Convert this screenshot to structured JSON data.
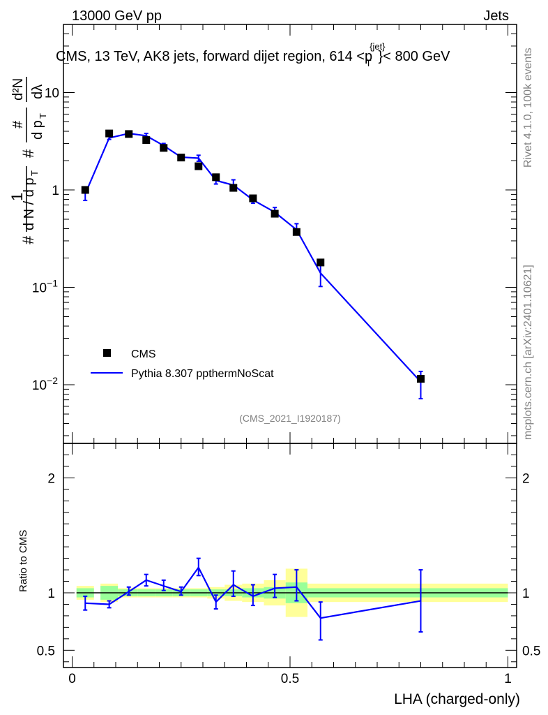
{
  "header": {
    "left": "13000 GeV pp",
    "right": "Jets"
  },
  "side": {
    "version": "Rivet 4.1.0,  100k events",
    "source": "mcplots.cern.ch [arXiv:2401.10621]"
  },
  "main_plot": {
    "title_prefix": "CMS, 13 TeV, AK8 jets, forward dijet region, 614 <",
    "title_p": "p",
    "title_sup": "{jet}",
    "title_sub": "T",
    "title_suffix": "}< 800 GeV",
    "ylabel": "1/N dN/dp_T dλ (normalized)",
    "analysis_id": "(CMS_2021_I1920187)"
  },
  "ratio_plot": {
    "ylabel": "Ratio to CMS"
  },
  "x_axis": {
    "label": "LHA (charged-only)",
    "ticks": [
      "0",
      "0.5",
      "1"
    ]
  },
  "legend": {
    "data": "CMS",
    "mc": "Pythia 8.307 ppthermNoScat"
  },
  "colors": {
    "mc": "#0000ff",
    "band_inner": "#99ff99",
    "band_outer": "#ffff99"
  },
  "chart_data": [
    {
      "type": "scatter",
      "title": "CMS, 13 TeV, AK8 jets, forward dijet region, 614 < p_T^{jet} < 800 GeV",
      "xlabel": "LHA (charged-only)",
      "ylabel": "(1/N) dN/dλ",
      "yscale": "log",
      "xlim": [
        -0.02,
        1.02
      ],
      "ylim": [
        0.0025,
        50
      ],
      "ytick_labels": [
        "10^-2",
        "10^-1",
        "1",
        "10"
      ],
      "series": [
        {
          "name": "CMS",
          "x": [
            0.03,
            0.085,
            0.13,
            0.17,
            0.21,
            0.25,
            0.29,
            0.33,
            0.37,
            0.415,
            0.465,
            0.515,
            0.57,
            0.8
          ],
          "y": [
            1.0,
            3.8,
            3.75,
            3.25,
            2.7,
            2.15,
            1.75,
            1.35,
            1.05,
            0.82,
            0.57,
            0.37,
            0.18,
            0.0115
          ],
          "xlow": [
            0.01,
            0.065,
            0.105,
            0.15,
            0.19,
            0.23,
            0.27,
            0.31,
            0.35,
            0.39,
            0.44,
            0.49,
            0.54,
            0.6
          ],
          "xhigh": [
            0.05,
            0.105,
            0.15,
            0.19,
            0.23,
            0.27,
            0.31,
            0.35,
            0.39,
            0.44,
            0.49,
            0.54,
            0.6,
            1.0
          ],
          "rel_err_inner": [
            0.04,
            0.06,
            0.03,
            0.03,
            0.03,
            0.03,
            0.03,
            0.03,
            0.03,
            0.04,
            0.05,
            0.09,
            0.04,
            0.04
          ],
          "rel_err_outer": [
            0.06,
            0.08,
            0.04,
            0.04,
            0.04,
            0.04,
            0.04,
            0.05,
            0.07,
            0.08,
            0.11,
            0.21,
            0.08,
            0.08
          ]
        },
        {
          "name": "Pythia 8.307 ppthermNoScat",
          "x": [
            0.03,
            0.085,
            0.13,
            0.17,
            0.21,
            0.25,
            0.29,
            0.33,
            0.37,
            0.415,
            0.465,
            0.515,
            0.57,
            0.8
          ],
          "y": [
            0.91,
            3.42,
            3.8,
            3.6,
            2.85,
            2.17,
            2.12,
            1.25,
            1.12,
            0.79,
            0.59,
            0.39,
            0.14,
            0.0107
          ],
          "err_lo": [
            0.13,
            0.12,
            0.1,
            0.2,
            0.15,
            0.1,
            0.15,
            0.1,
            0.1,
            0.06,
            0.05,
            0.04,
            0.038,
            0.0035
          ],
          "err_hi": [
            0.13,
            0.12,
            0.1,
            0.2,
            0.15,
            0.1,
            0.15,
            0.12,
            0.15,
            0.07,
            0.07,
            0.06,
            0.038,
            0.003
          ]
        }
      ]
    },
    {
      "type": "line",
      "title": "Ratio to CMS",
      "xlabel": "LHA (charged-only)",
      "ylabel": "Ratio to CMS",
      "xlim": [
        -0.02,
        1.02
      ],
      "ylim": [
        0.35,
        2.3
      ],
      "yticks": [
        0.5,
        1,
        2
      ],
      "ytick_labels": [
        "0.5",
        "1",
        "2"
      ],
      "reference_line": 1,
      "series": [
        {
          "name": "Pythia 8.307 ppthermNoScat",
          "x": [
            0.03,
            0.085,
            0.13,
            0.17,
            0.21,
            0.25,
            0.29,
            0.33,
            0.37,
            0.415,
            0.465,
            0.515,
            0.57,
            0.8
          ],
          "y": [
            0.91,
            0.9,
            1.01,
            1.11,
            1.06,
            1.01,
            1.22,
            0.92,
            1.07,
            0.97,
            1.04,
            1.05,
            0.78,
            0.93
          ],
          "ylo": [
            0.85,
            0.87,
            0.98,
            1.06,
            1.02,
            0.98,
            1.15,
            0.86,
            0.97,
            0.89,
            0.96,
            0.93,
            0.59,
            0.66
          ],
          "yhi": [
            0.97,
            0.93,
            1.05,
            1.16,
            1.11,
            1.05,
            1.3,
            0.98,
            1.19,
            1.07,
            1.16,
            1.2,
            0.92,
            1.2
          ]
        }
      ]
    }
  ]
}
